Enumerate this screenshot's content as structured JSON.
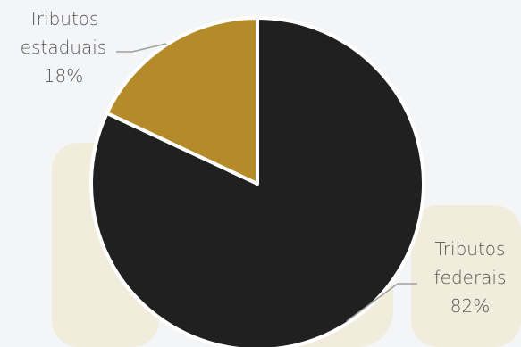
{
  "chart_data": {
    "type": "pie",
    "slices": [
      {
        "label_lines": [
          "Tributos",
          "federais"
        ],
        "value": 82,
        "value_label": "82%",
        "color": "#202020"
      },
      {
        "label_lines": [
          "Tributos",
          "estaduais"
        ],
        "value": 18,
        "value_label": "18%",
        "color": "#b58a28"
      }
    ]
  },
  "colors": {
    "background": "#f4f5f7",
    "slice_border": "#ffffff",
    "leader_line": "#9e9e9e",
    "label_text": "#555555"
  }
}
